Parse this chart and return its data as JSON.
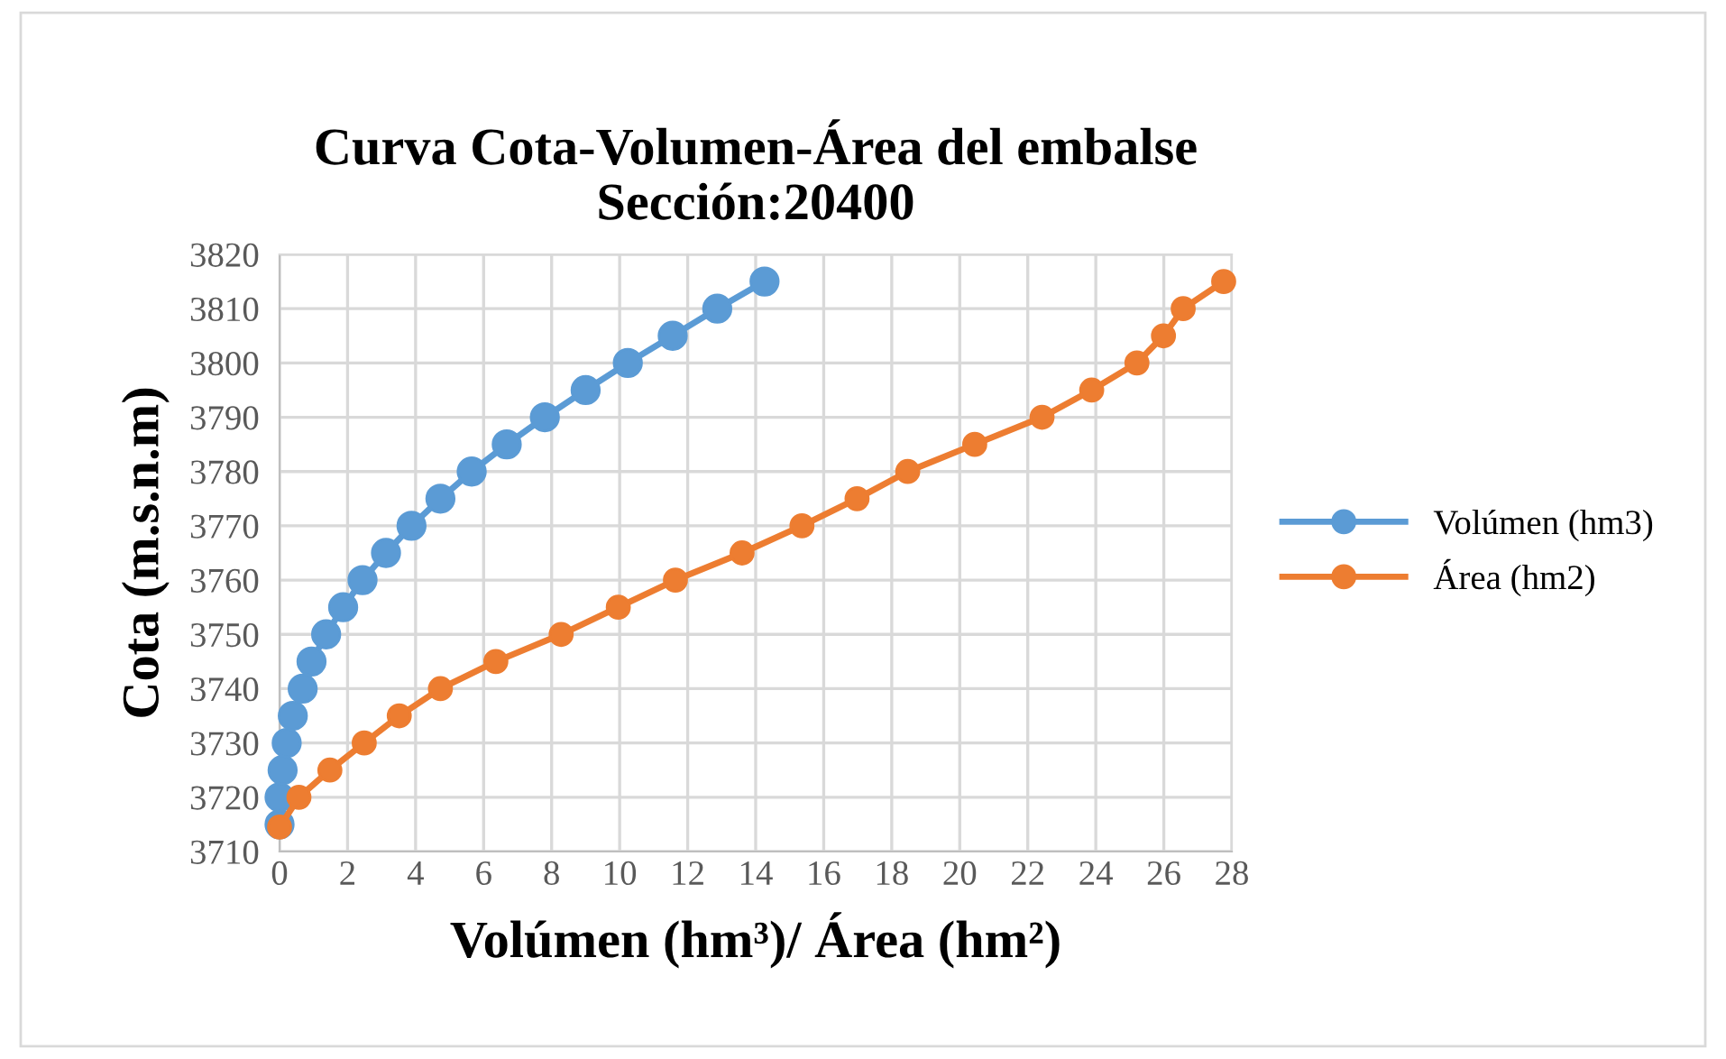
{
  "chart_data": {
    "type": "line",
    "title": "Curva Cota-Volumen-Área del embalse\nSección:20400",
    "xlabel": "Volúmen (hm³)/ Área (hm²)",
    "ylabel": "Cota (m.s.n.m)",
    "series": [
      {
        "name": "Volúmen (hm3)",
        "color": "#5b9bd5",
        "x": [
          0,
          0,
          0.09,
          0.21,
          0.39,
          0.68,
          0.94,
          1.37,
          1.87,
          2.44,
          3.13,
          3.88,
          4.73,
          5.65,
          6.68,
          7.8,
          9.0,
          10.24,
          11.56,
          12.87,
          14.26
        ],
        "values": [
          3715,
          3720,
          3725,
          3730,
          3735,
          3740,
          3745,
          3750,
          3755,
          3760,
          3765,
          3770,
          3775,
          3780,
          3785,
          3790,
          3795,
          3800,
          3805,
          3810,
          3815
        ]
      },
      {
        "name": "Área (hm2)",
        "color": "#ed7d31",
        "x": [
          0,
          0.57,
          1.48,
          2.49,
          3.52,
          4.73,
          6.36,
          8.28,
          9.96,
          11.64,
          13.6,
          15.36,
          16.98,
          18.47,
          20.44,
          22.42,
          23.88,
          25.21,
          25.99,
          26.57,
          27.76
        ],
        "values": [
          3714.5,
          3720,
          3725,
          3730,
          3735,
          3740,
          3745,
          3750,
          3755,
          3760,
          3765,
          3770,
          3775,
          3780,
          3785,
          3790,
          3795,
          3800,
          3805,
          3810,
          3815
        ]
      }
    ],
    "xlim": [
      0,
      28
    ],
    "xticks": [
      0,
      2,
      4,
      6,
      8,
      10,
      12,
      14,
      16,
      18,
      20,
      22,
      24,
      26,
      28
    ],
    "ylim": [
      3710,
      3820
    ],
    "yticks": [
      3710,
      3720,
      3730,
      3740,
      3750,
      3760,
      3770,
      3780,
      3790,
      3800,
      3810,
      3820
    ],
    "grid": true,
    "legend": "right",
    "marker": "circle",
    "line_style": "solid"
  }
}
